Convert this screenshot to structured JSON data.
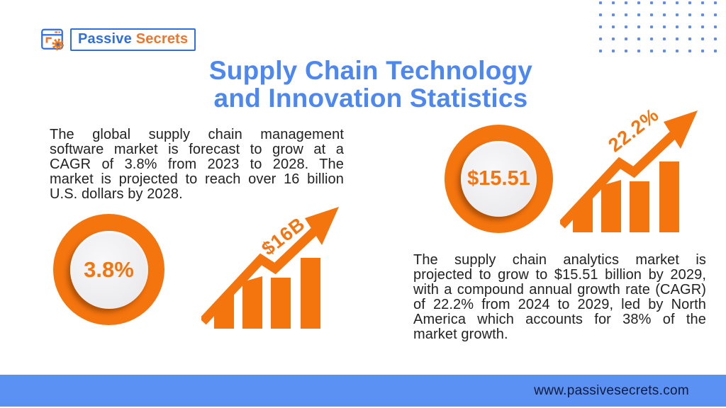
{
  "brand": {
    "name_primary": "Passive",
    "name_secondary": "Secrets",
    "logo_icon": "browser-window-gear-icon"
  },
  "title": {
    "line1": "Supply Chain Technology",
    "line2": "and Innovation Statistics"
  },
  "stats": {
    "left": {
      "paragraph": "The global supply chain management software market is forecast to grow at a CAGR of 3.8% from 2023 to 2028. The market is projected to reach over 16 billion U.S. dollars by 2028.",
      "badge_value": "3.8%",
      "chart_label": "$16B",
      "chart_icon": "bar-chart-growth-arrow-icon"
    },
    "right": {
      "paragraph": "The supply chain analytics market is projected to grow to $15.51 billion by 2029, with a compound annual growth rate (CAGR) of 22.2% from 2024 to 2029, led by North America which accounts for 38% of the market growth.",
      "badge_value": "$15.51",
      "chart_label": "22.2%",
      "chart_icon": "bar-chart-growth-arrow-icon"
    }
  },
  "footer": {
    "website": "www.passivesecrets.com"
  },
  "colors": {
    "accent_orange": "#f4740e",
    "brand_blue": "#2e6fe0",
    "title_blue": "#4d87f0",
    "footer_bar_blue": "#5b91f2",
    "dot_grid_blue": "#5e8df2",
    "body_text": "#222222",
    "footer_text": "#0f1b3d"
  },
  "decor": {
    "dot_grid": {
      "rows": 5,
      "cols": 11
    }
  }
}
